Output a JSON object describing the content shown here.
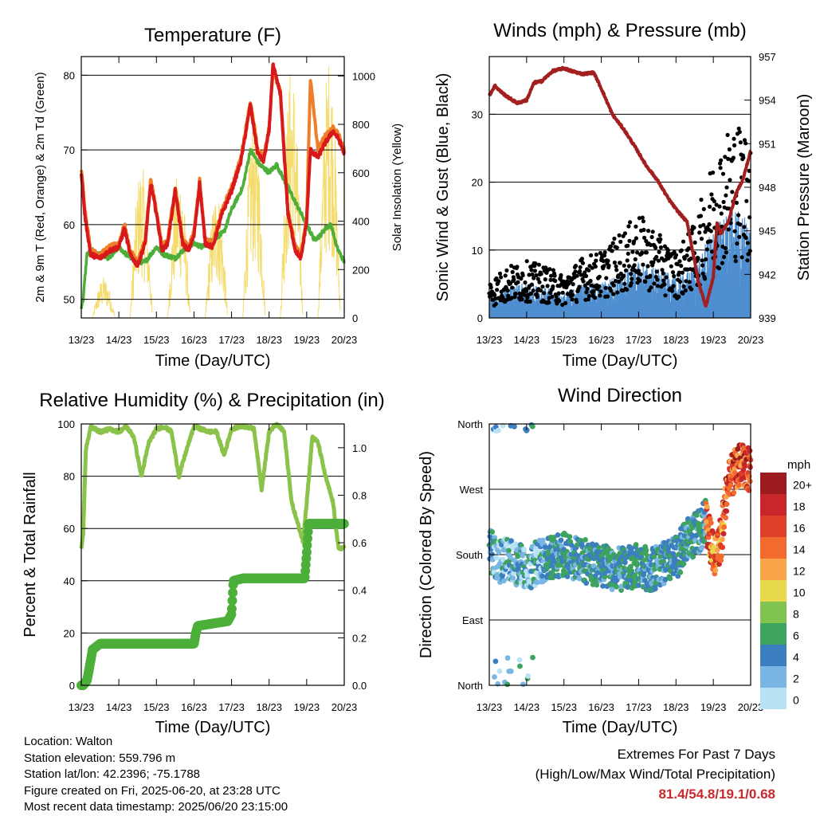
{
  "time_ticks": [
    "13/23",
    "14/23",
    "15/23",
    "16/23",
    "17/23",
    "18/23",
    "19/23",
    "20/23"
  ],
  "footer": {
    "location": "Location: Walton",
    "elevation": "Station elevation: 559.796 m",
    "latlon": "Station lat/lon: 42.2396; -75.1788",
    "created": "Figure created on Fri, 2025-06-20, at 23:28 UTC",
    "recent": "Most recent data timestamp: 2025/06/20 23:15:00"
  },
  "extremes": {
    "title": "Extremes For Past 7 Days",
    "subtitle": "(High/Low/Max Wind/Total Precipitation)",
    "values": "81.4/54.8/19.1/0.68"
  },
  "chart_data": [
    {
      "type": "line",
      "title": "Temperature (F)",
      "xlabel": "Time (Day/UTC)",
      "ylabel": "2m & 9m T (Red, Orange) & 2m Td (Green)",
      "y2label": "Solar Insolation (Yellow)",
      "xlim": [
        0,
        7
      ],
      "ylim": [
        47.5,
        82.5
      ],
      "y2lim": [
        0,
        1080
      ],
      "yticks": [
        50,
        60,
        70,
        80
      ],
      "y2ticks": [
        0,
        200,
        400,
        600,
        800,
        1000
      ],
      "grid": true,
      "colors": {
        "t2m": "#d7191c",
        "t9m": "#f07d28",
        "td": "#4daf3a",
        "solar": "#f5dc6e"
      },
      "series": [
        {
          "key": "t9m",
          "x": [
            0,
            0.1,
            0.25,
            0.5,
            0.75,
            1,
            1.15,
            1.3,
            1.5,
            1.7,
            1.85,
            2,
            2.15,
            2.3,
            2.5,
            2.7,
            2.85,
            3,
            3.15,
            3.3,
            3.5,
            3.75,
            4,
            4.25,
            4.5,
            4.7,
            4.85,
            5,
            5.1,
            5.3,
            5.5,
            5.7,
            5.85,
            6,
            6.1,
            6.3,
            6.5,
            6.7,
            6.85,
            7
          ],
          "y": [
            67.5,
            62,
            56.5,
            56,
            57,
            57.5,
            60,
            56.5,
            55,
            58,
            66,
            62,
            57,
            58,
            65,
            58,
            57,
            59,
            66,
            58,
            57.5,
            62,
            65,
            69,
            76.5,
            70,
            69,
            73,
            80.5,
            78,
            62,
            57,
            56,
            61,
            79.5,
            70,
            72,
            73,
            72,
            70
          ]
        },
        {
          "key": "t2m",
          "x": [
            0,
            0.1,
            0.25,
            0.5,
            0.75,
            1,
            1.15,
            1.3,
            1.5,
            1.7,
            1.85,
            2,
            2.15,
            2.3,
            2.5,
            2.7,
            2.85,
            3,
            3.15,
            3.3,
            3.5,
            3.75,
            4,
            4.25,
            4.5,
            4.7,
            4.85,
            5,
            5.1,
            5.3,
            5.5,
            5.7,
            5.85,
            6,
            6.1,
            6.3,
            6.5,
            6.7,
            6.85,
            7
          ],
          "y": [
            67,
            61,
            56,
            55.5,
            56.5,
            57,
            59.5,
            56,
            54.5,
            57.5,
            65.5,
            61.5,
            56.5,
            57.5,
            64.5,
            57.5,
            56.5,
            58.5,
            65.5,
            57.5,
            57,
            61.5,
            64.5,
            68.5,
            76,
            69.5,
            68.5,
            72.5,
            81.4,
            77.5,
            61.5,
            56.5,
            55.5,
            60.5,
            70,
            69,
            71,
            72.5,
            71.5,
            69.5
          ]
        },
        {
          "key": "td",
          "x": [
            0,
            0.05,
            0.15,
            0.3,
            0.5,
            0.75,
            1,
            1.2,
            1.5,
            1.7,
            2,
            2.2,
            2.5,
            2.8,
            3,
            3.2,
            3.5,
            3.8,
            4,
            4.3,
            4.5,
            4.75,
            5,
            5.2,
            5.5,
            5.7,
            5.9,
            6,
            6.2,
            6.35,
            6.5,
            6.65,
            6.8,
            6.9,
            7
          ],
          "y": [
            49,
            50,
            56,
            56.5,
            56,
            55.5,
            57,
            56,
            55,
            55,
            57,
            56,
            55.5,
            57,
            57.5,
            57,
            58,
            59,
            62,
            65,
            70,
            68,
            67,
            68,
            65,
            63,
            61,
            60,
            58,
            58.5,
            59.5,
            60,
            57,
            56,
            55
          ]
        },
        {
          "key": "solar",
          "note": "daily peaks",
          "x": [
            0.6,
            1.6,
            2.6,
            3.6,
            4.6,
            5.6,
            6.6
          ],
          "y": [
            170,
            640,
            630,
            540,
            850,
            1060,
            1090
          ]
        }
      ]
    },
    {
      "type": "scatter",
      "title": "Winds (mph) & Pressure (mb)",
      "xlabel": "Time (Day/UTC)",
      "ylabel": "Sonic Wind & Gust (Blue, Black)",
      "y2label": "Station Pressure (Maroon)",
      "xlim": [
        0,
        7
      ],
      "ylim": [
        0,
        38.5
      ],
      "y2lim": [
        939,
        957
      ],
      "yticks": [
        0,
        10,
        20,
        30
      ],
      "y2ticks": [
        939,
        942,
        945,
        948,
        951,
        954,
        957
      ],
      "grid": true,
      "colors": {
        "wind": "#4f8fd0",
        "gust": "#000000",
        "pressure": "#a31f1f"
      },
      "pressure": {
        "x": [
          0,
          0.15,
          0.3,
          0.5,
          0.75,
          1,
          1.2,
          1.4,
          1.7,
          2,
          2.2,
          2.5,
          2.8,
          3,
          3.3,
          3.6,
          3.9,
          4.2,
          4.5,
          4.8,
          5,
          5.3,
          5.6,
          5.8,
          6,
          6.1,
          6.2,
          6.4,
          6.6,
          6.8,
          7
        ],
        "y": [
          954.3,
          955,
          954.6,
          954.2,
          953.8,
          954,
          955.2,
          955.3,
          956,
          956.2,
          956,
          955.8,
          955.9,
          954.8,
          953,
          952,
          950.8,
          949.5,
          948.5,
          947.2,
          946.5,
          945.6,
          941.5,
          939.8,
          941.8,
          945.6,
          944.8,
          945.6,
          947.5,
          948.6,
          950.5
        ]
      },
      "wind_mean": {
        "x": [
          0,
          0.5,
          1,
          1.5,
          2,
          2.5,
          3,
          3.5,
          4,
          4.5,
          5,
          5.5,
          6,
          6.5,
          7
        ],
        "y": [
          2,
          3,
          3.5,
          3,
          2.5,
          3.5,
          3.5,
          4.5,
          5.5,
          5,
          4,
          5,
          9,
          11,
          10
        ]
      },
      "gust_mean": {
        "x": [
          0,
          0.5,
          1,
          1.5,
          2,
          2.5,
          3,
          3.5,
          4,
          4.5,
          5,
          5.5,
          6,
          6.5,
          7
        ],
        "y": [
          4,
          5.5,
          6,
          5.5,
          4.5,
          6.5,
          7,
          9,
          11,
          9,
          7,
          10,
          17,
          21,
          20
        ]
      }
    },
    {
      "type": "line",
      "title": "Relative Humidity (%) & Precipitation (in)",
      "xlabel": "Time (Day/UTC)",
      "ylabel": "Percent & Total Rainfall",
      "xlim": [
        0,
        7
      ],
      "ylim": [
        0,
        100
      ],
      "y2lim": [
        0,
        1.1
      ],
      "yticks": [
        0,
        20,
        40,
        60,
        80,
        100
      ],
      "y2ticks": [
        0.0,
        0.2,
        0.4,
        0.6,
        0.8,
        1.0
      ],
      "grid": true,
      "colors": {
        "rh": "#8bc34a",
        "precip": "#4caf3a"
      },
      "series": [
        {
          "key": "rh",
          "x": [
            0,
            0.05,
            0.12,
            0.25,
            0.5,
            0.75,
            1,
            1.2,
            1.4,
            1.6,
            1.8,
            2,
            2.2,
            2.4,
            2.6,
            2.8,
            3,
            3.2,
            3.4,
            3.6,
            3.8,
            4,
            4.2,
            4.4,
            4.6,
            4.8,
            5,
            5.2,
            5.4,
            5.6,
            5.8,
            5.9,
            6,
            6.15,
            6.3,
            6.5,
            6.7,
            6.85,
            7
          ],
          "y": [
            52,
            58,
            90,
            99,
            97,
            98,
            97,
            99,
            95,
            80,
            93,
            98,
            99,
            97,
            80,
            90,
            99,
            98,
            97,
            97,
            88,
            98,
            99,
            99,
            98,
            75,
            97,
            100,
            97,
            70,
            60,
            55,
            70,
            95,
            93,
            80,
            70,
            52,
            53
          ]
        },
        {
          "key": "precip",
          "x": [
            0,
            0.05,
            0.15,
            0.2,
            0.3,
            0.5,
            1,
            1.5,
            2,
            2.5,
            3,
            3.05,
            3.1,
            3.5,
            3.9,
            4,
            4.05,
            4.3,
            4.5,
            5,
            5.5,
            5.95,
            6.0,
            6.05,
            6.5,
            7
          ],
          "y": [
            0,
            0,
            0.02,
            0.06,
            0.15,
            0.175,
            0.175,
            0.175,
            0.175,
            0.175,
            0.175,
            0.22,
            0.25,
            0.26,
            0.27,
            0.3,
            0.44,
            0.45,
            0.45,
            0.45,
            0.45,
            0.45,
            0.56,
            0.68,
            0.68,
            0.68
          ]
        }
      ]
    },
    {
      "type": "scatter",
      "title": "Wind Direction",
      "xlabel": "Time (Day/UTC)",
      "ylabel": "Direction (Colored By Speed)",
      "xlim": [
        0,
        7
      ],
      "ylim": [
        0,
        360
      ],
      "ytick_labels": [
        "North",
        "East",
        "South",
        "West",
        "North"
      ],
      "grid": true,
      "colorbar": {
        "title": "mph",
        "labels": [
          "20+",
          "18",
          "16",
          "14",
          "12",
          "10",
          "8",
          "6",
          "4",
          "2",
          "0"
        ],
        "colors": [
          "#9b1b1e",
          "#c8262a",
          "#de3f28",
          "#f26a2e",
          "#f9a54a",
          "#e8d84b",
          "#80c34e",
          "#3da35f",
          "#3c7fc0",
          "#7ab6e4",
          "#b9e2f5"
        ]
      },
      "direction_mean": {
        "x": [
          0,
          0.2,
          0.5,
          0.8,
          1,
          1.3,
          1.6,
          2,
          2.3,
          2.6,
          3,
          3.3,
          3.6,
          4,
          4.3,
          4.6,
          5,
          5.3,
          5.6,
          5.8,
          6,
          6.2,
          6.4,
          6.6,
          6.8,
          7
        ],
        "y": [
          190,
          170,
          175,
          165,
          160,
          170,
          175,
          180,
          175,
          170,
          165,
          160,
          160,
          165,
          160,
          165,
          175,
          200,
          210,
          230,
          180,
          200,
          280,
          300,
          305,
          295
        ]
      }
    }
  ]
}
